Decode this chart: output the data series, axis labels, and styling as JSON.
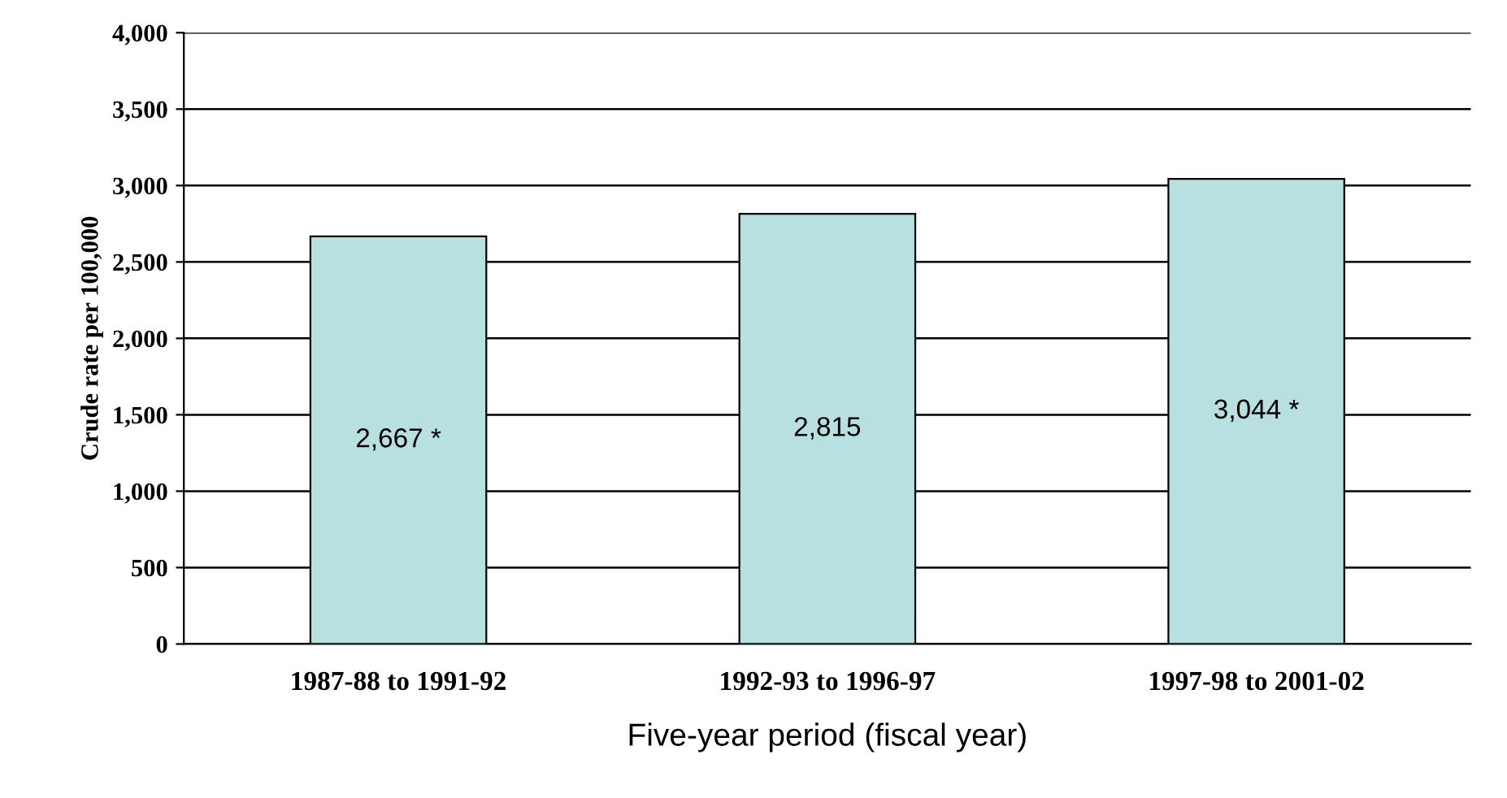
{
  "chart_data": {
    "type": "bar",
    "xlabel": "Five-year period (fiscal year)",
    "ylabel": "Crude rate per 100,000",
    "categories": [
      "1987-88 to 1991-92",
      "1992-93 to 1996-97",
      "1997-98 to 2001-02"
    ],
    "values": [
      2667,
      2815,
      3044
    ],
    "value_labels": [
      "2,667 *",
      "2,815",
      "3,044 *"
    ],
    "color": "#b8e0e0",
    "ylim": [
      0,
      4000
    ],
    "yticks": [
      {
        "value": 0,
        "label": "0"
      },
      {
        "value": 500,
        "label": "500"
      },
      {
        "value": 1000,
        "label": "1,000"
      },
      {
        "value": 1500,
        "label": "1,500"
      },
      {
        "value": 2000,
        "label": "2,000"
      },
      {
        "value": 2500,
        "label": "2,500"
      },
      {
        "value": 3000,
        "label": "3,000"
      },
      {
        "value": 3500,
        "label": "3,500"
      },
      {
        "value": 4000,
        "label": "4,000"
      }
    ],
    "grid": "y",
    "legend": false
  }
}
